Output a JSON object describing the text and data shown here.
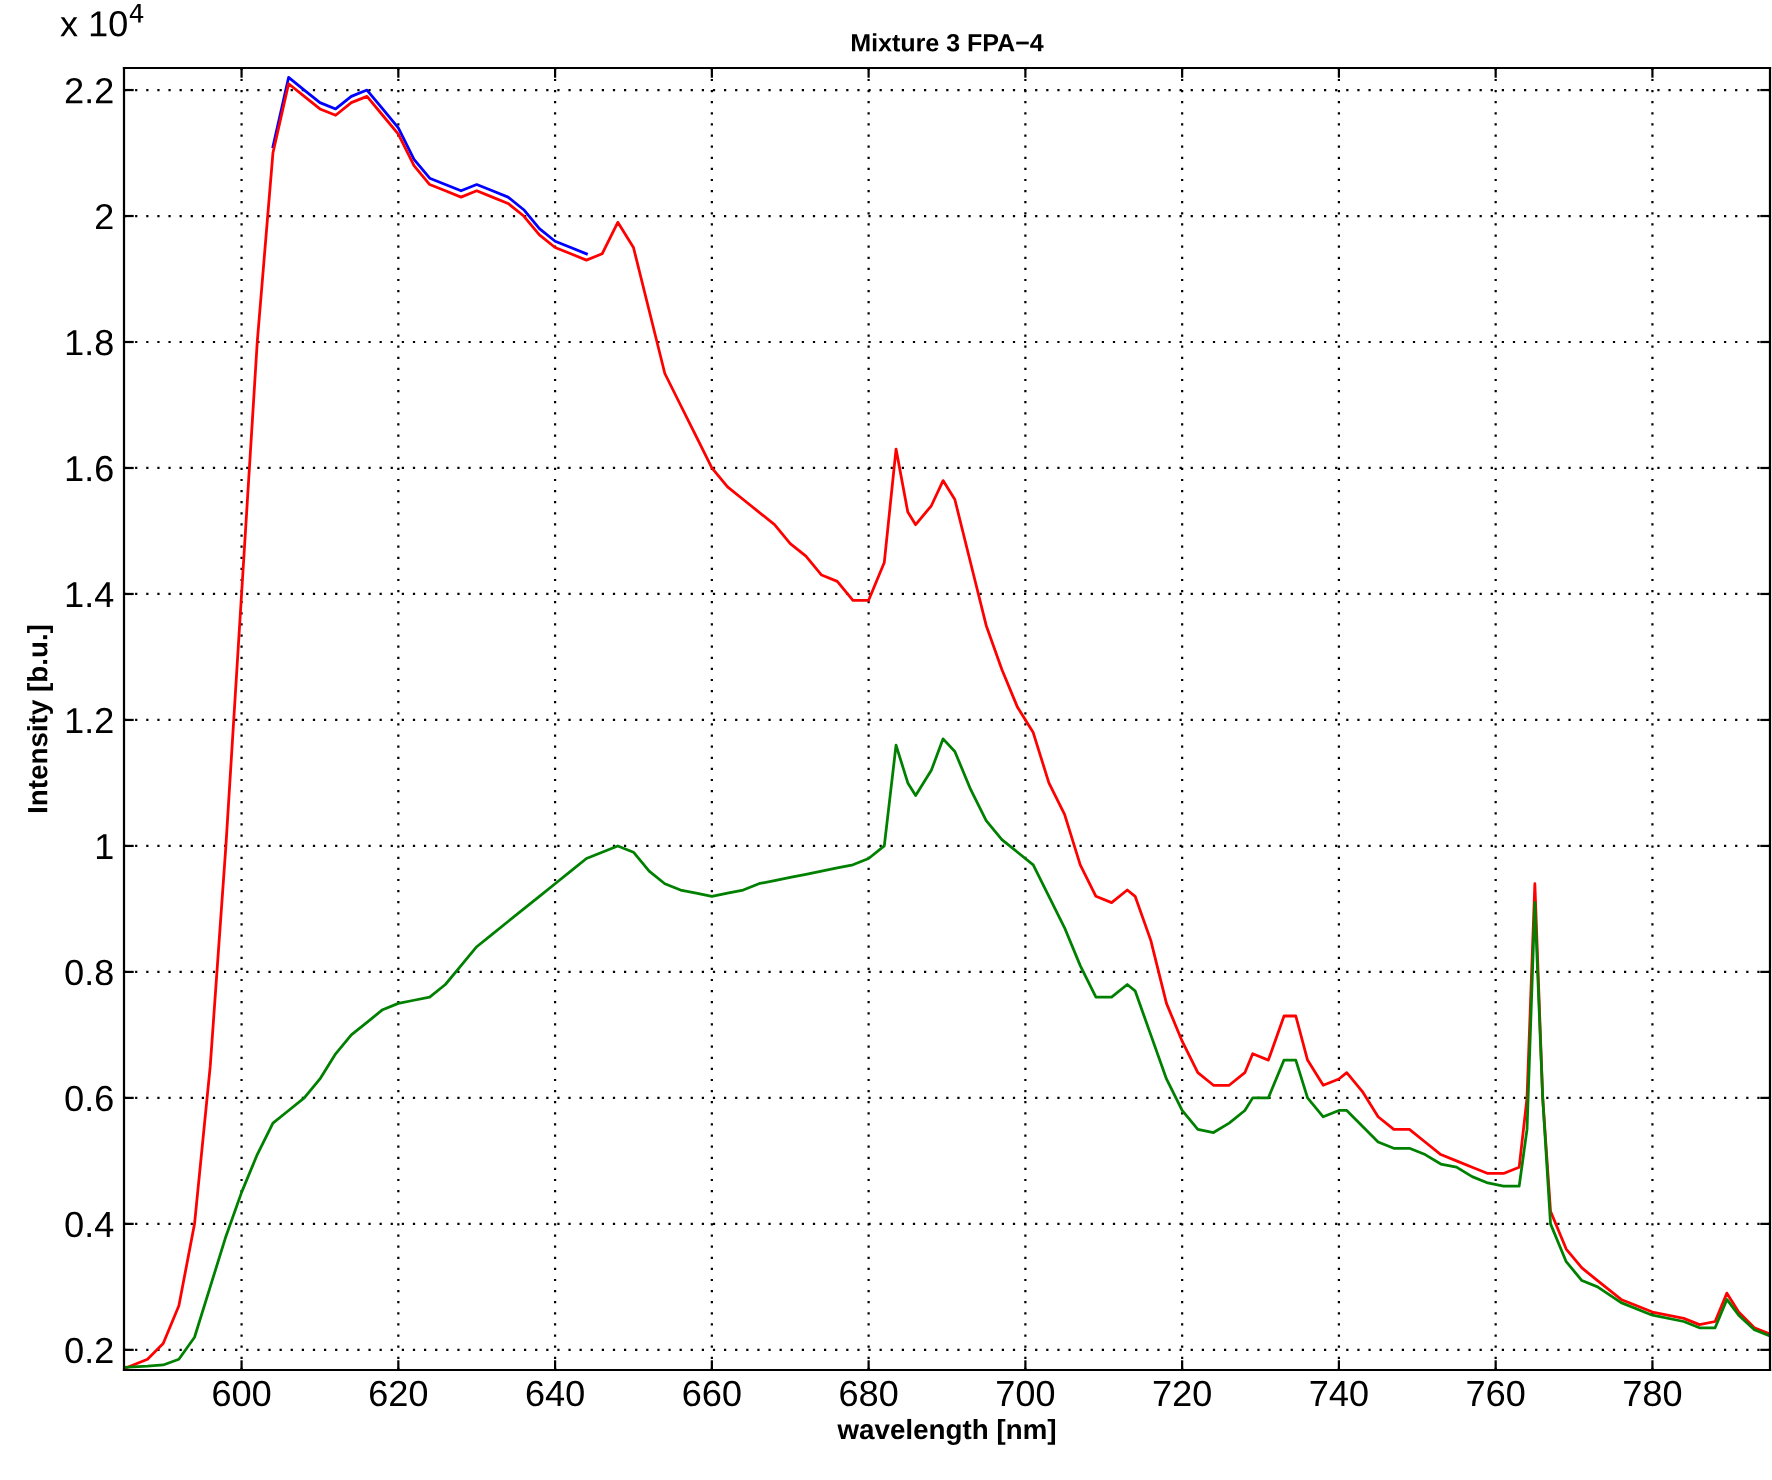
{
  "chart_data": {
    "type": "line",
    "title": "Mixture 3 FPA−4",
    "xlabel": "wavelength [nm]",
    "ylabel": "Intensity [b.u.]",
    "annotations": [
      "x 10$^{4}$"
    ],
    "x": [
      585,
      588,
      590,
      592,
      594,
      596,
      598,
      600,
      602,
      604,
      606,
      608,
      610,
      612,
      614,
      616,
      618,
      620,
      622,
      624,
      626,
      628,
      630,
      632,
      634,
      636,
      638,
      640,
      642,
      644,
      646,
      648,
      650,
      652,
      654,
      656,
      658,
      660,
      662,
      664,
      666,
      668,
      670,
      672,
      674,
      676,
      678,
      680,
      682,
      683.5,
      685,
      686,
      688,
      689.5,
      691,
      693,
      695,
      697,
      699,
      701,
      703,
      705,
      707,
      709,
      711,
      713,
      714,
      716,
      718,
      720,
      722,
      724,
      726,
      728,
      729,
      731,
      733,
      734.5,
      736,
      738,
      740,
      741,
      743,
      745,
      747,
      749,
      751,
      753,
      755,
      757,
      759,
      761,
      763,
      764,
      765,
      766,
      767,
      769,
      771,
      773,
      776,
      780,
      784,
      786,
      788,
      789.5,
      791,
      793,
      795
    ],
    "series": [
      {
        "color": "#0000ff",
        "values": [
          null,
          null,
          null,
          null,
          null,
          null,
          null,
          null,
          null,
          2.11,
          2.22,
          2.2,
          2.18,
          2.17,
          2.19,
          2.2,
          2.17,
          2.14,
          2.09,
          2.06,
          2.05,
          2.04,
          2.05,
          2.04,
          2.03,
          2.01,
          1.98,
          1.96,
          1.95,
          1.94,
          null,
          null,
          null,
          null,
          null,
          null,
          null,
          null,
          null,
          null,
          null,
          null,
          null,
          null,
          null,
          null,
          null,
          null,
          null,
          null,
          null,
          null,
          null,
          null,
          null,
          null,
          null,
          null,
          null,
          null,
          null,
          null,
          null,
          null,
          null,
          null,
          null,
          null,
          null,
          null,
          null,
          null,
          null,
          null,
          null,
          null,
          null,
          null,
          null,
          null,
          null,
          null,
          null,
          null,
          null,
          null,
          null,
          null,
          null,
          null,
          null,
          null,
          null,
          null,
          null,
          null,
          null,
          null,
          null,
          null,
          null,
          null,
          null,
          null,
          null,
          null,
          null,
          null,
          null
        ]
      },
      {
        "color": "#ff0000",
        "values": [
          0.17,
          0.185,
          0.21,
          0.27,
          0.4,
          0.65,
          1.0,
          1.4,
          1.8,
          2.1,
          2.21,
          2.19,
          2.17,
          2.16,
          2.18,
          2.19,
          2.16,
          2.13,
          2.08,
          2.05,
          2.04,
          2.03,
          2.04,
          2.03,
          2.02,
          2.0,
          1.97,
          1.95,
          1.94,
          1.93,
          1.94,
          1.99,
          1.95,
          1.85,
          1.75,
          1.7,
          1.65,
          1.6,
          1.57,
          1.55,
          1.53,
          1.51,
          1.48,
          1.46,
          1.43,
          1.42,
          1.39,
          1.39,
          1.45,
          1.63,
          1.53,
          1.51,
          1.54,
          1.58,
          1.55,
          1.45,
          1.35,
          1.28,
          1.22,
          1.18,
          1.1,
          1.05,
          0.97,
          0.92,
          0.91,
          0.93,
          0.92,
          0.85,
          0.75,
          0.69,
          0.64,
          0.62,
          0.62,
          0.64,
          0.67,
          0.66,
          0.73,
          0.73,
          0.66,
          0.62,
          0.63,
          0.64,
          0.61,
          0.57,
          0.55,
          0.55,
          0.53,
          0.51,
          0.5,
          0.49,
          0.48,
          0.48,
          0.49,
          0.6,
          0.94,
          0.6,
          0.42,
          0.36,
          0.33,
          0.31,
          0.28,
          0.26,
          0.25,
          0.24,
          0.245,
          0.29,
          0.26,
          0.235,
          0.225
        ]
      },
      {
        "color": "#008000",
        "values": [
          0.172,
          0.174,
          0.176,
          0.185,
          0.22,
          0.3,
          0.38,
          0.45,
          0.51,
          0.56,
          0.58,
          0.6,
          0.63,
          0.67,
          0.7,
          0.72,
          0.74,
          0.75,
          0.755,
          0.76,
          0.78,
          0.81,
          0.84,
          0.86,
          0.88,
          0.9,
          0.92,
          0.94,
          0.96,
          0.98,
          0.99,
          1.0,
          0.99,
          0.96,
          0.94,
          0.93,
          0.925,
          0.92,
          0.925,
          0.93,
          0.94,
          0.945,
          0.95,
          0.955,
          0.96,
          0.965,
          0.97,
          0.98,
          1.0,
          1.16,
          1.1,
          1.08,
          1.12,
          1.17,
          1.15,
          1.09,
          1.04,
          1.01,
          0.99,
          0.97,
          0.92,
          0.87,
          0.81,
          0.76,
          0.76,
          0.78,
          0.77,
          0.7,
          0.63,
          0.58,
          0.55,
          0.545,
          0.56,
          0.58,
          0.6,
          0.6,
          0.66,
          0.66,
          0.6,
          0.57,
          0.58,
          0.58,
          0.555,
          0.53,
          0.52,
          0.52,
          0.51,
          0.495,
          0.49,
          0.475,
          0.465,
          0.46,
          0.46,
          0.55,
          0.91,
          0.6,
          0.4,
          0.34,
          0.31,
          0.3,
          0.275,
          0.255,
          0.245,
          0.235,
          0.235,
          0.28,
          0.255,
          0.232,
          0.222
        ]
      }
    ],
    "xlim": [
      585,
      795
    ],
    "ylim": [
      0.168,
      2.235
    ],
    "xticks": [
      600,
      620,
      640,
      660,
      680,
      700,
      720,
      740,
      760,
      780
    ],
    "yticks": [
      0.2,
      0.4,
      0.6,
      0.8,
      1,
      1.2,
      1.4,
      1.6,
      1.8,
      2,
      2.2
    ],
    "grid": true,
    "line_style": "solid"
  }
}
